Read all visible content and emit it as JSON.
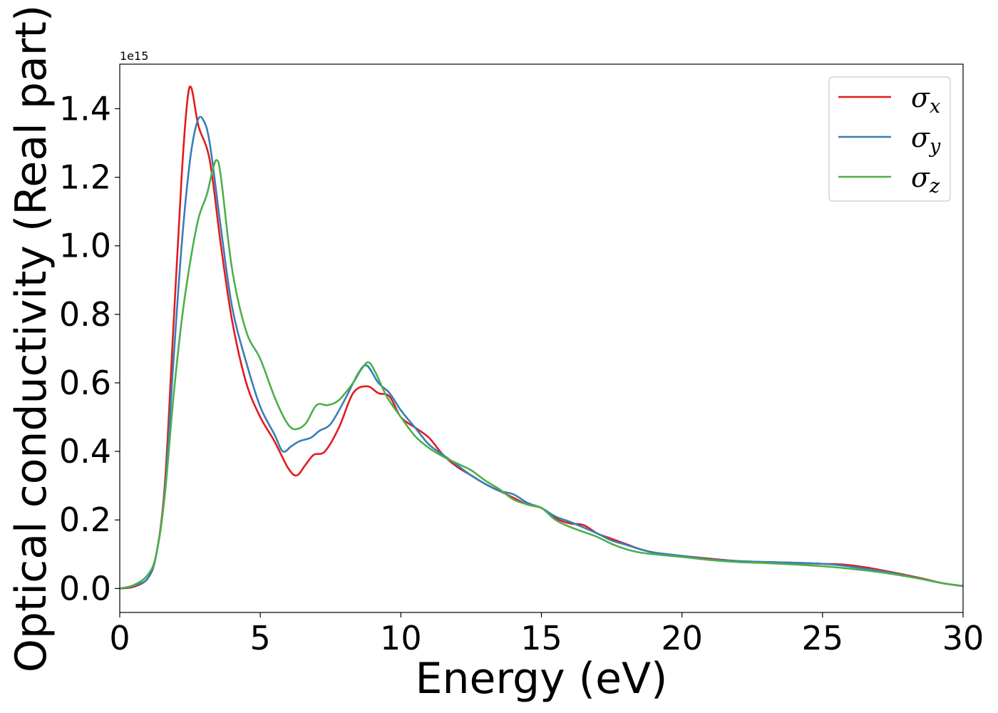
{
  "chart_data": {
    "type": "line",
    "xlabel": "Energy (eV)",
    "ylabel": "Optical conductivity (Real part)",
    "offset_text": "1e15",
    "xlim": [
      0,
      30
    ],
    "ylim": [
      -0.07,
      1.53
    ],
    "xticks": [
      0,
      5,
      10,
      15,
      20,
      25,
      30
    ],
    "xtick_labels": [
      "0",
      "5",
      "10",
      "15",
      "20",
      "25",
      "30"
    ],
    "yticks": [
      0.0,
      0.2,
      0.4,
      0.6,
      0.8,
      1.0,
      1.2,
      1.4
    ],
    "ytick_labels": [
      "0.0",
      "0.2",
      "0.4",
      "0.6",
      "0.8",
      "1.0",
      "1.2",
      "1.4"
    ],
    "grid": false,
    "legend_position": "top-right",
    "series": [
      {
        "name": "σx",
        "base": "σ",
        "sub": "x",
        "color": "#e41a1c",
        "x": [
          0,
          0.5,
          1.0,
          1.3,
          1.6,
          1.9,
          2.2,
          2.4,
          2.55,
          2.8,
          3.2,
          3.6,
          4.0,
          4.5,
          5.0,
          5.5,
          6.0,
          6.3,
          6.6,
          6.9,
          7.3,
          7.8,
          8.3,
          8.8,
          9.2,
          9.6,
          10.0,
          10.5,
          11.0,
          11.5,
          12.0,
          12.5,
          13.0,
          13.5,
          14.0,
          14.5,
          15.0,
          15.5,
          16.0,
          16.5,
          17.0,
          17.5,
          18.0,
          18.5,
          19.0,
          20.0,
          21.0,
          22.0,
          23.0,
          24.0,
          25.0,
          25.7,
          26.5,
          27.5,
          28.5,
          29.3,
          30.0
        ],
        "y": [
          0.0,
          0.005,
          0.03,
          0.1,
          0.3,
          0.75,
          1.2,
          1.42,
          1.46,
          1.35,
          1.25,
          1.0,
          0.78,
          0.6,
          0.5,
          0.43,
          0.35,
          0.33,
          0.36,
          0.39,
          0.4,
          0.47,
          0.57,
          0.59,
          0.57,
          0.56,
          0.5,
          0.47,
          0.44,
          0.39,
          0.355,
          0.33,
          0.305,
          0.285,
          0.265,
          0.245,
          0.235,
          0.205,
          0.19,
          0.185,
          0.16,
          0.145,
          0.13,
          0.115,
          0.105,
          0.095,
          0.087,
          0.08,
          0.077,
          0.075,
          0.072,
          0.07,
          0.062,
          0.047,
          0.03,
          0.015,
          0.007
        ]
      },
      {
        "name": "σy",
        "base": "σ",
        "sub": "y",
        "color": "#377eb8",
        "x": [
          0,
          0.5,
          1.0,
          1.3,
          1.6,
          1.9,
          2.2,
          2.5,
          2.75,
          2.95,
          3.2,
          3.6,
          4.0,
          4.5,
          5.0,
          5.5,
          5.8,
          6.1,
          6.4,
          6.8,
          7.1,
          7.5,
          8.0,
          8.5,
          8.8,
          9.2,
          9.6,
          10.0,
          10.5,
          11.0,
          11.5,
          12.0,
          12.5,
          13.0,
          13.5,
          14.0,
          14.5,
          15.0,
          15.5,
          16.0,
          16.5,
          17.0,
          17.5,
          18.0,
          18.5,
          19.0,
          20.0,
          21.0,
          22.0,
          23.0,
          24.0,
          25.0,
          25.7,
          26.5,
          27.5,
          28.5,
          29.3,
          30.0
        ],
        "y": [
          0.0,
          0.008,
          0.03,
          0.1,
          0.28,
          0.65,
          1.0,
          1.25,
          1.36,
          1.37,
          1.3,
          1.05,
          0.82,
          0.66,
          0.53,
          0.45,
          0.4,
          0.415,
          0.43,
          0.44,
          0.46,
          0.48,
          0.55,
          0.63,
          0.65,
          0.6,
          0.57,
          0.52,
          0.47,
          0.42,
          0.39,
          0.36,
          0.33,
          0.305,
          0.285,
          0.275,
          0.25,
          0.235,
          0.21,
          0.195,
          0.178,
          0.16,
          0.14,
          0.128,
          0.115,
          0.105,
          0.095,
          0.085,
          0.08,
          0.077,
          0.075,
          0.072,
          0.067,
          0.058,
          0.045,
          0.028,
          0.015,
          0.007
        ]
      },
      {
        "name": "σz",
        "base": "σ",
        "sub": "z",
        "color": "#4daf4a",
        "x": [
          0,
          0.5,
          1.0,
          1.3,
          1.6,
          1.9,
          2.2,
          2.5,
          2.8,
          3.1,
          3.3,
          3.45,
          3.6,
          4.0,
          4.5,
          5.0,
          5.5,
          5.9,
          6.2,
          6.6,
          7.0,
          7.4,
          7.8,
          8.3,
          8.6,
          8.85,
          9.1,
          9.5,
          10.0,
          10.5,
          11.0,
          11.5,
          12.0,
          12.5,
          13.0,
          13.5,
          14.0,
          14.5,
          15.0,
          15.5,
          16.0,
          16.5,
          17.0,
          17.5,
          18.0,
          18.5,
          19.0,
          20.0,
          21.0,
          22.0,
          23.0,
          24.0,
          25.0,
          25.7,
          26.5,
          27.5,
          28.5,
          29.3,
          30.0
        ],
        "y": [
          0.0,
          0.01,
          0.04,
          0.1,
          0.27,
          0.55,
          0.78,
          0.95,
          1.08,
          1.15,
          1.22,
          1.25,
          1.2,
          0.93,
          0.75,
          0.67,
          0.56,
          0.49,
          0.465,
          0.48,
          0.535,
          0.535,
          0.55,
          0.6,
          0.64,
          0.66,
          0.63,
          0.56,
          0.5,
          0.445,
          0.41,
          0.385,
          0.365,
          0.345,
          0.315,
          0.29,
          0.26,
          0.245,
          0.235,
          0.2,
          0.18,
          0.165,
          0.15,
          0.13,
          0.115,
          0.105,
          0.1,
          0.092,
          0.083,
          0.077,
          0.074,
          0.07,
          0.065,
          0.06,
          0.053,
          0.042,
          0.028,
          0.015,
          0.007
        ]
      }
    ]
  }
}
